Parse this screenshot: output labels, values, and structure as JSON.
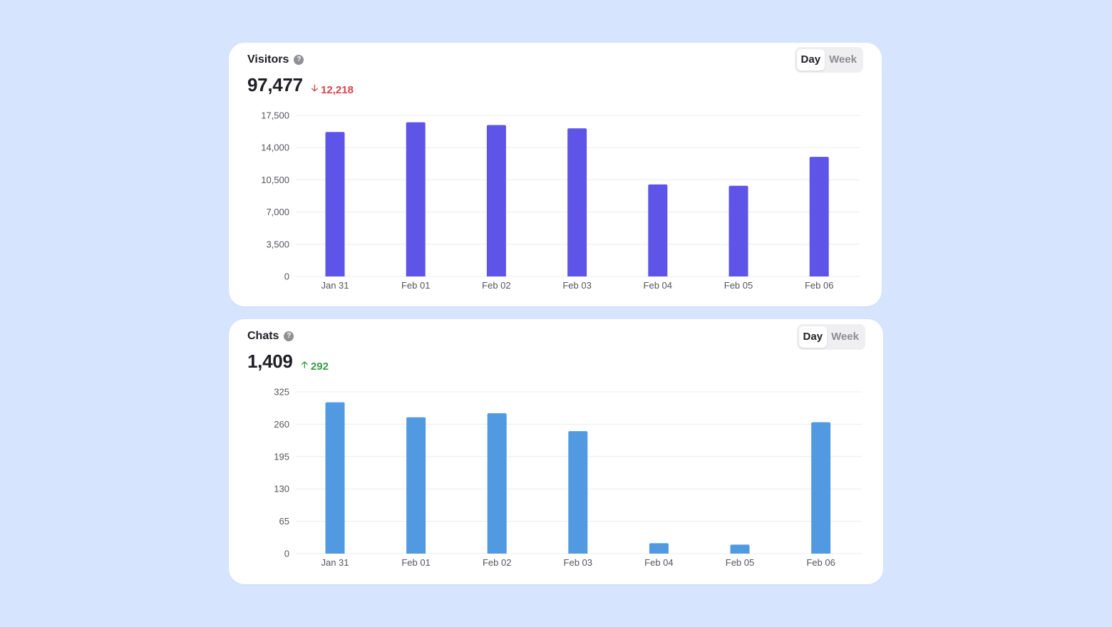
{
  "cards": [
    {
      "id": "visitors",
      "title": "Visitors",
      "help_icon": "help-circle-icon",
      "help_glyph": "?",
      "value": "97,477",
      "delta": {
        "text": "12,218",
        "direction": "down",
        "arrow": "🡣",
        "color": "#d9434e"
      },
      "toggle": {
        "options": [
          "Day",
          "Week"
        ],
        "selected": "Day"
      }
    },
    {
      "id": "chats",
      "title": "Chats",
      "help_icon": "help-circle-icon",
      "help_glyph": "?",
      "value": "1,409",
      "delta": {
        "text": "292",
        "direction": "up",
        "arrow": "🡡",
        "color": "#3a9a44"
      },
      "toggle": {
        "options": [
          "Day",
          "Week"
        ],
        "selected": "Day"
      }
    }
  ],
  "chart_data": [
    {
      "type": "bar",
      "title": "Visitors",
      "categories": [
        "Jan 31",
        "Feb 01",
        "Feb 02",
        "Feb 03",
        "Feb 04",
        "Feb 05",
        "Feb 06"
      ],
      "values": [
        15700,
        16750,
        16450,
        16100,
        10000,
        9850,
        13000
      ],
      "yticks": [
        "0",
        "3,500",
        "7,000",
        "10,500",
        "14,000",
        "17,500"
      ],
      "ylim": [
        0,
        17500
      ],
      "color": "#5e55e8",
      "grid": true
    },
    {
      "type": "bar",
      "title": "Chats",
      "categories": [
        "Jan 31",
        "Feb 01",
        "Feb 02",
        "Feb 03",
        "Feb 04",
        "Feb 05",
        "Feb 06"
      ],
      "values": [
        304,
        274,
        282,
        246,
        21,
        18,
        264
      ],
      "yticks": [
        "0",
        "65",
        "130",
        "195",
        "260",
        "325"
      ],
      "ylim": [
        0,
        325
      ],
      "color": "#5199e0",
      "grid": true
    }
  ]
}
